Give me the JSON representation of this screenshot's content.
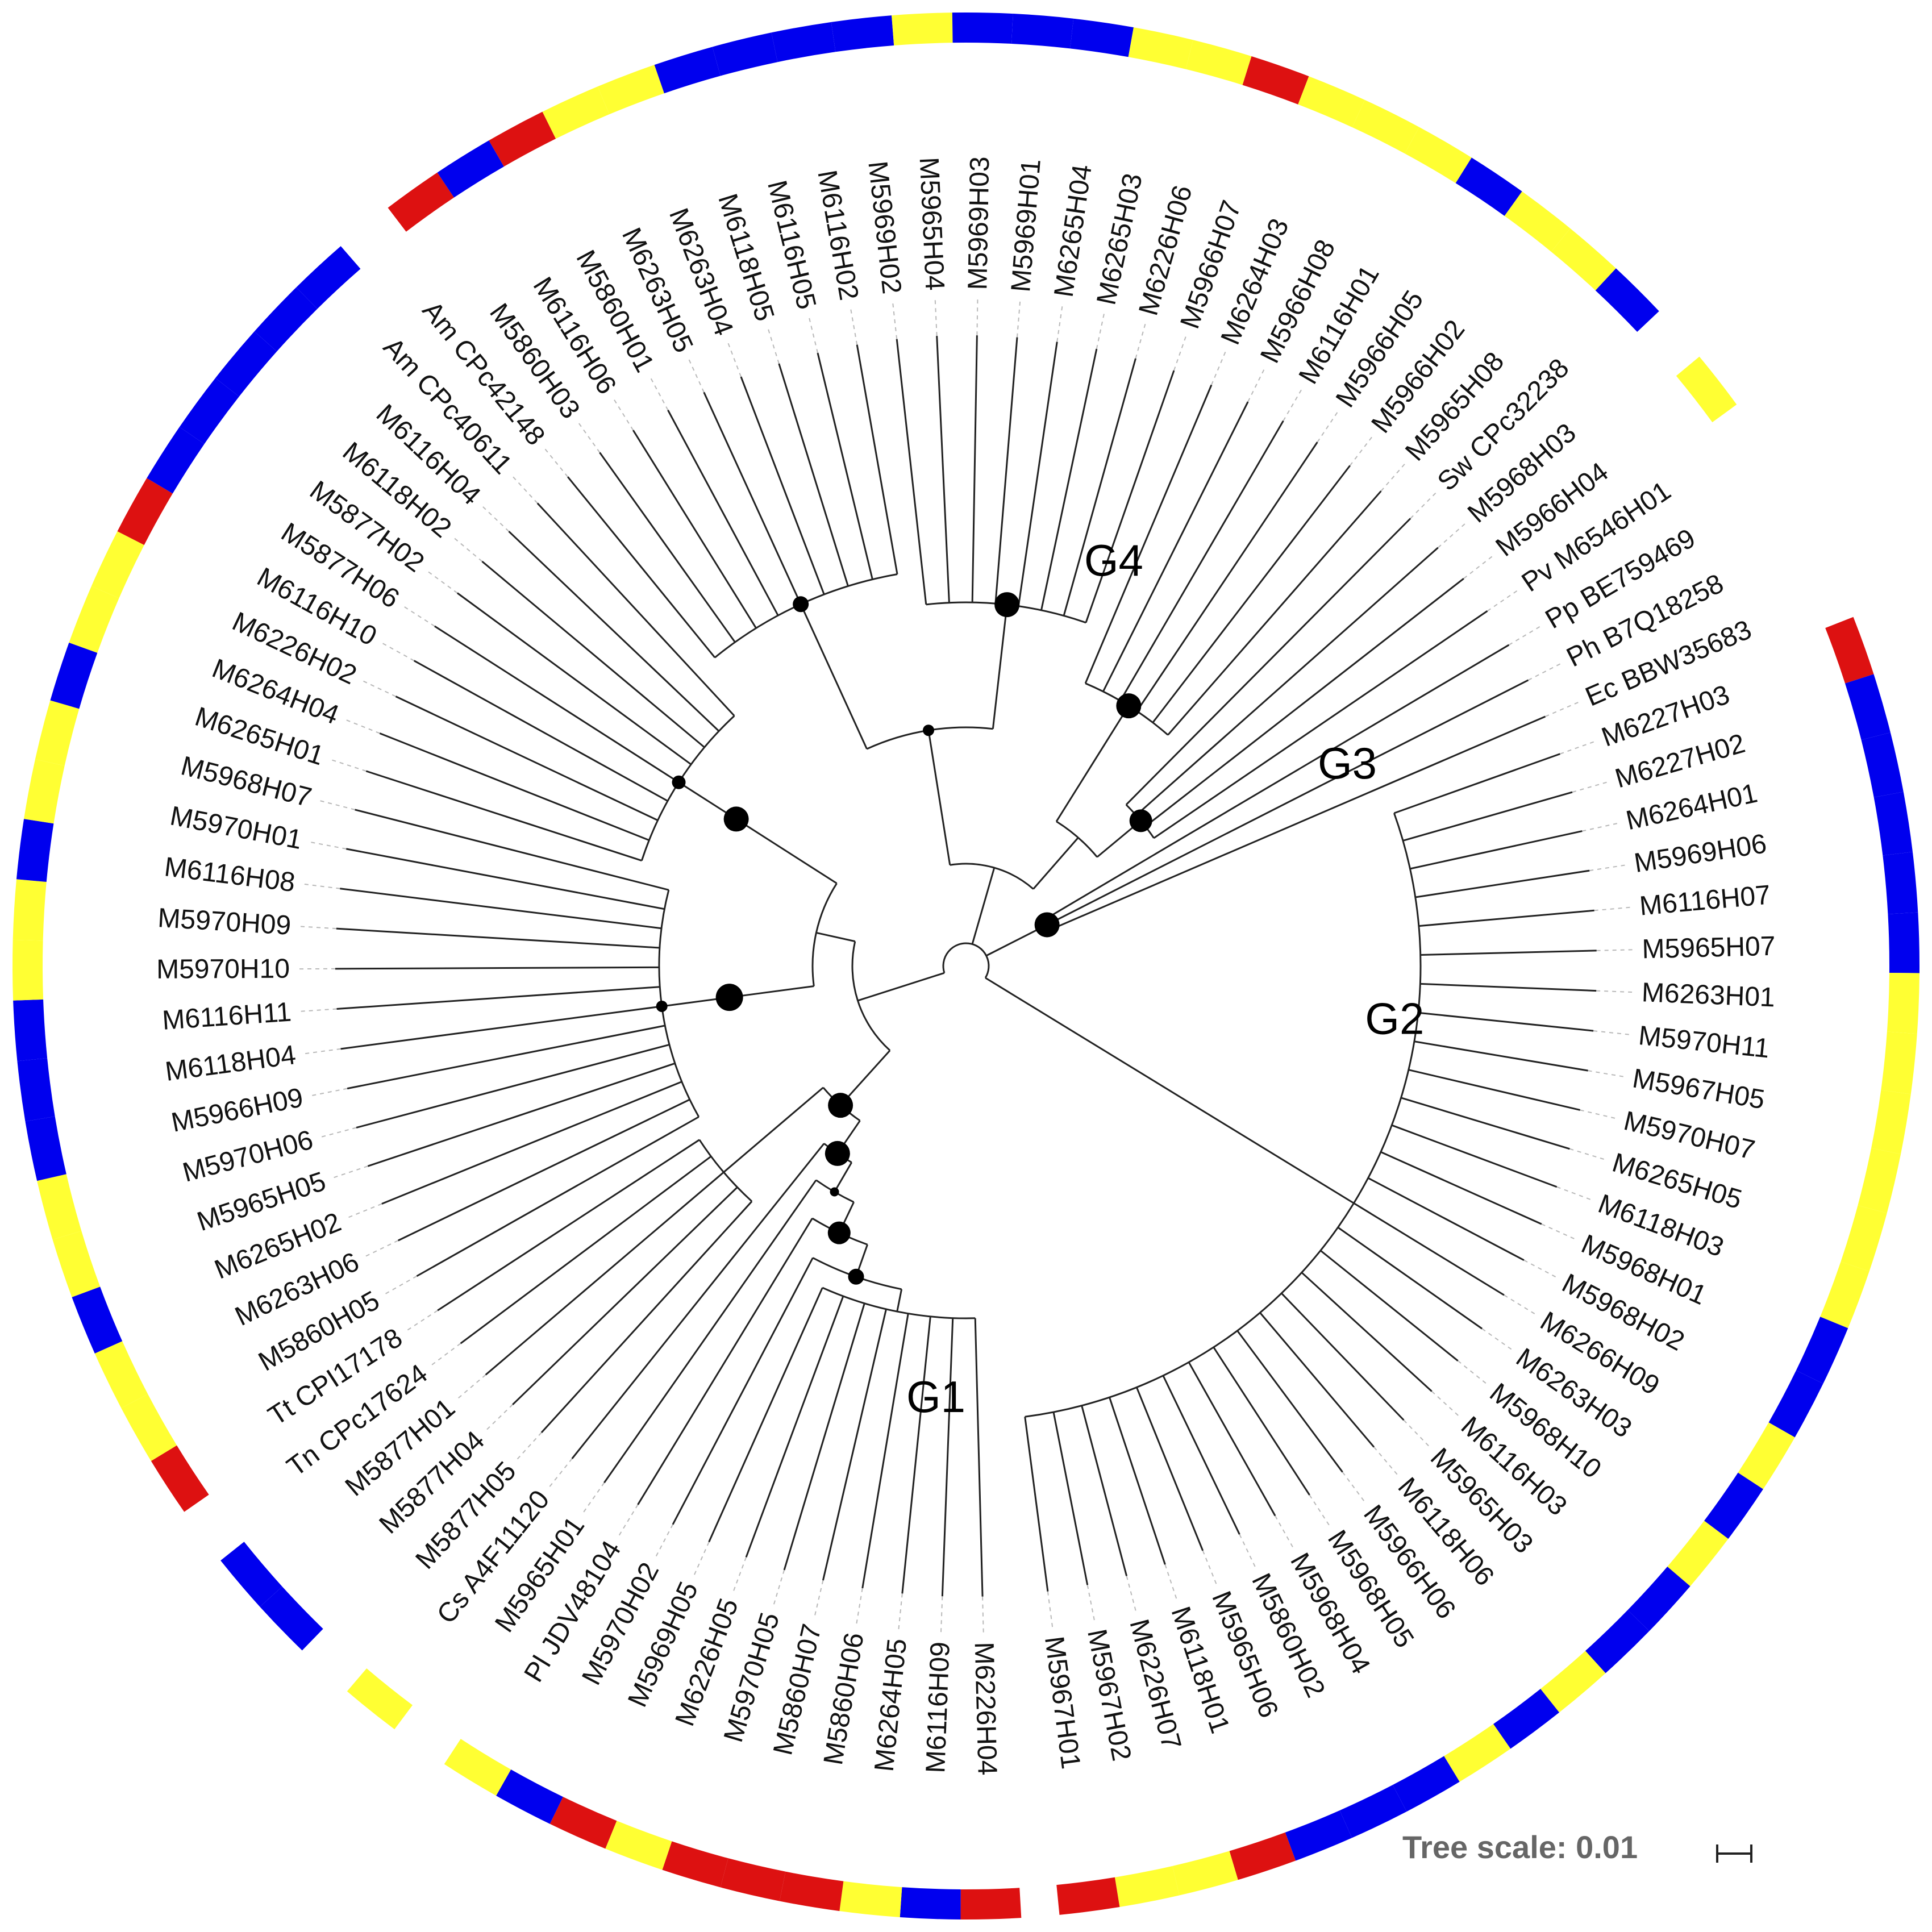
{
  "figure": {
    "scale_label": "Tree scale: 0.01",
    "colors": {
      "blue": "#0000ee",
      "yellow": "#ffff33",
      "red": "#dd1111",
      "line": "#222222",
      "guide": "#b9b9b9"
    },
    "groups": [
      {
        "name": "G1",
        "angle": 94
      },
      {
        "name": "G2",
        "angle": 7
      },
      {
        "name": "G3",
        "angle": -28
      },
      {
        "name": "G4",
        "angle": -70
      }
    ],
    "leaves": [
      {
        "label": "M6226H04",
        "ring": "red"
      },
      {
        "label": "M6116H09",
        "ring": "blue"
      },
      {
        "label": "M6264H05",
        "ring": "yellow"
      },
      {
        "label": "M5860H06",
        "ring": "red"
      },
      {
        "label": "M5860H07",
        "ring": "red"
      },
      {
        "label": "M5970H05",
        "ring": "red"
      },
      {
        "label": "M6226H05",
        "ring": "yellow"
      },
      {
        "label": "M5969H05",
        "ring": "red"
      },
      {
        "label": "M5970H02",
        "ring": "blue"
      },
      {
        "label": "Pl JDV48104",
        "ring": "yellow"
      },
      {
        "label": "M5965H01",
        "ring": "none"
      },
      {
        "label": "Cs A4F11120",
        "ring": "yellow"
      },
      {
        "label": "M5877H05",
        "ring": "none"
      },
      {
        "label": "M5877H04",
        "ring": "blue"
      },
      {
        "label": "M5877H01",
        "ring": "blue"
      },
      {
        "label": "Tn CPc17624",
        "ring": "none"
      },
      {
        "label": "Tt CPI17178",
        "ring": "red"
      },
      {
        "label": "M5860H05",
        "ring": "yellow"
      },
      {
        "label": "M6263H06",
        "ring": "yellow"
      },
      {
        "label": "M6265H02",
        "ring": "blue"
      },
      {
        "label": "M5965H05",
        "ring": "yellow"
      },
      {
        "label": "M5970H06",
        "ring": "yellow"
      },
      {
        "label": "M5966H09",
        "ring": "blue"
      },
      {
        "label": "M6118H04",
        "ring": "blue"
      },
      {
        "label": "M6116H11",
        "ring": "blue"
      },
      {
        "label": "M5970H10",
        "ring": "yellow"
      },
      {
        "label": "M5970H09",
        "ring": "yellow"
      },
      {
        "label": "M6116H08",
        "ring": "blue"
      },
      {
        "label": "M5970H01",
        "ring": "yellow"
      },
      {
        "label": "M5968H07",
        "ring": "yellow"
      },
      {
        "label": "M6265H01",
        "ring": "blue"
      },
      {
        "label": "M6264H04",
        "ring": "yellow"
      },
      {
        "label": "M6226H02",
        "ring": "yellow"
      },
      {
        "label": "M6116H10",
        "ring": "red"
      },
      {
        "label": "M5877H06",
        "ring": "blue"
      },
      {
        "label": "M5877H02",
        "ring": "blue"
      },
      {
        "label": "M6118H02",
        "ring": "blue"
      },
      {
        "label": "M6116H04",
        "ring": "blue"
      },
      {
        "label": "Am CPc40611",
        "ring": "blue"
      },
      {
        "label": "Am CPc42148",
        "ring": "none"
      },
      {
        "label": "M5860H03",
        "ring": "red"
      },
      {
        "label": "M6116H06",
        "ring": "blue"
      },
      {
        "label": "M5860H01",
        "ring": "red"
      },
      {
        "label": "M6263H05",
        "ring": "yellow"
      },
      {
        "label": "M6263H04",
        "ring": "yellow"
      },
      {
        "label": "M6118H05",
        "ring": "blue"
      },
      {
        "label": "M6116H05",
        "ring": "blue"
      },
      {
        "label": "M6116H02",
        "ring": "blue"
      },
      {
        "label": "M5969H02",
        "ring": "blue"
      },
      {
        "label": "M5965H04",
        "ring": "yellow"
      },
      {
        "label": "M5969H03",
        "ring": "blue"
      },
      {
        "label": "M5969H01",
        "ring": "blue"
      },
      {
        "label": "M6265H04",
        "ring": "blue"
      },
      {
        "label": "M6265H03",
        "ring": "yellow"
      },
      {
        "label": "M6226H06",
        "ring": "yellow"
      },
      {
        "label": "M5966H07",
        "ring": "red"
      },
      {
        "label": "M6264H03",
        "ring": "yellow"
      },
      {
        "label": "M5966H08",
        "ring": "yellow"
      },
      {
        "label": "M6116H01",
        "ring": "yellow"
      },
      {
        "label": "M5966H05",
        "ring": "blue"
      },
      {
        "label": "M5966H02",
        "ring": "yellow"
      },
      {
        "label": "M5965H08",
        "ring": "yellow"
      },
      {
        "label": "Sw CPc32238",
        "ring": "blue"
      },
      {
        "label": "M5968H03",
        "ring": "none"
      },
      {
        "label": "M5966H04",
        "ring": "yellow"
      },
      {
        "label": "Pv M6546H01",
        "ring": "none"
      },
      {
        "label": "Pp BE759469",
        "ring": "none"
      },
      {
        "label": "Ph B7Q18258",
        "ring": "none"
      },
      {
        "label": "Ec BBW35683",
        "ring": "none"
      },
      {
        "label": "M6227H03",
        "ring": "red"
      },
      {
        "label": "M6227H02",
        "ring": "blue"
      },
      {
        "label": "M6264H01",
        "ring": "blue"
      },
      {
        "label": "M5969H06",
        "ring": "blue"
      },
      {
        "label": "M6116H07",
        "ring": "blue"
      },
      {
        "label": "M5965H07",
        "ring": "blue"
      },
      {
        "label": "M6263H01",
        "ring": "yellow"
      },
      {
        "label": "M5970H11",
        "ring": "yellow"
      },
      {
        "label": "M5967H05",
        "ring": "yellow"
      },
      {
        "label": "M5970H07",
        "ring": "yellow"
      },
      {
        "label": "M6265H05",
        "ring": "yellow"
      },
      {
        "label": "M6118H03",
        "ring": "yellow"
      },
      {
        "label": "M5968H01",
        "ring": "blue"
      },
      {
        "label": "M5968H02",
        "ring": "blue"
      },
      {
        "label": "M6266H09",
        "ring": "yellow"
      },
      {
        "label": "M6263H03",
        "ring": "blue"
      },
      {
        "label": "M5968H10",
        "ring": "yellow"
      },
      {
        "label": "M6116H03",
        "ring": "blue"
      },
      {
        "label": "M5965H03",
        "ring": "blue"
      },
      {
        "label": "M6118H06",
        "ring": "yellow"
      },
      {
        "label": "M5966H06",
        "ring": "blue"
      },
      {
        "label": "M5968H05",
        "ring": "yellow"
      },
      {
        "label": "M5968H04",
        "ring": "blue"
      },
      {
        "label": "M5860H02",
        "ring": "blue"
      },
      {
        "label": "M5965H06",
        "ring": "blue"
      },
      {
        "label": "M6118H01",
        "ring": "red"
      },
      {
        "label": "M6226H07",
        "ring": "yellow"
      },
      {
        "label": "M5967H02",
        "ring": "yellow"
      },
      {
        "label": "M5967H01",
        "ring": "red"
      }
    ]
  }
}
